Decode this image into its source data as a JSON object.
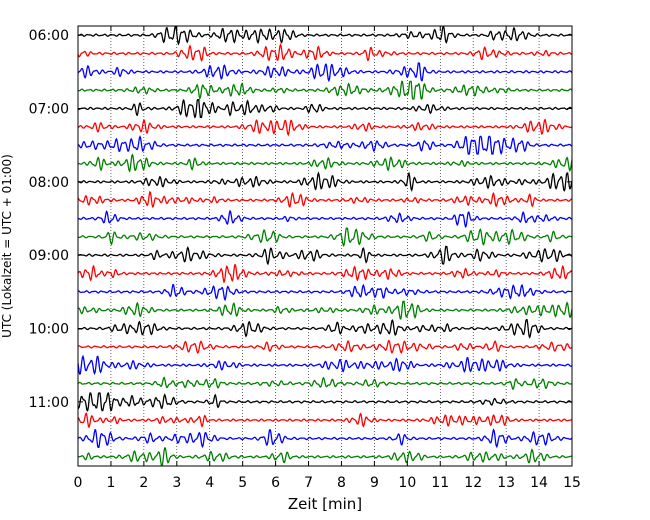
{
  "chart_data": {
    "type": "line",
    "title": "",
    "xlabel": "Zeit  [min]",
    "ylabel": "UTC (Lokalzeit = UTC + 01:00)",
    "xlim": [
      0,
      15
    ],
    "x_ticks": [
      0,
      1,
      2,
      3,
      4,
      5,
      6,
      7,
      8,
      9,
      10,
      11,
      12,
      13,
      14,
      15
    ],
    "x_tick_labels": [
      "0",
      "1",
      "2",
      "3",
      "4",
      "5",
      "6",
      "7",
      "8",
      "9",
      "10",
      "11",
      "12",
      "13",
      "14",
      "15"
    ],
    "y_tick_labels": [
      "06:00",
      "07:00",
      "08:00",
      "09:00",
      "10:00",
      "11:00"
    ],
    "y_tick_rows": [
      0,
      4,
      8,
      12,
      16,
      20
    ],
    "grid": "vertical dotted lines at each minute",
    "trace_colors": [
      "#000000",
      "#ff0000",
      "#0000ff",
      "#008000"
    ],
    "trace_count": 24,
    "trace_minutes": 15,
    "trace_start_times": [
      "06:00",
      "06:15",
      "06:30",
      "06:45",
      "07:00",
      "07:15",
      "07:30",
      "07:45",
      "08:00",
      "08:15",
      "08:30",
      "08:45",
      "09:00",
      "09:15",
      "09:30",
      "09:45",
      "10:00",
      "10:15",
      "10:30",
      "10:45",
      "11:00",
      "11:15",
      "11:30",
      "11:45"
    ]
  }
}
